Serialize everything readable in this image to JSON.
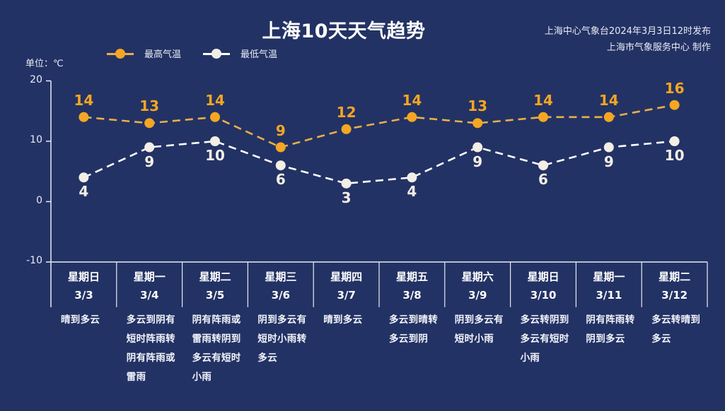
{
  "header": {
    "title": "上海10天天气趋势",
    "publisher_line1": "上海中心气象台2024年3月3日12时发布",
    "publisher_line2": "上海市气象服务中心 制作",
    "unit_label": "单位：℃"
  },
  "legend": {
    "high_label": "最高气温",
    "low_label": "最低气温"
  },
  "colors": {
    "background": "#233264",
    "high": "#f5a623",
    "high_line": "#e8b04a",
    "low": "#f3eee6",
    "axis": "#e8ecf5"
  },
  "axis": {
    "ticks": [
      "20",
      "10",
      "0",
      "-10"
    ]
  },
  "days": [
    {
      "weekday": "星期日",
      "date": "3/3",
      "desc": [
        "晴到多云"
      ]
    },
    {
      "weekday": "星期一",
      "date": "3/4",
      "desc": [
        "多云到阴有",
        "短时阵雨转",
        "阴有阵雨或",
        "雷雨"
      ]
    },
    {
      "weekday": "星期二",
      "date": "3/5",
      "desc": [
        "阴有阵雨或",
        "雷雨转阴到",
        "多云有短时",
        "小雨"
      ]
    },
    {
      "weekday": "星期三",
      "date": "3/6",
      "desc": [
        "阴到多云有",
        "短时小雨转",
        "多云"
      ]
    },
    {
      "weekday": "星期四",
      "date": "3/7",
      "desc": [
        "晴到多云"
      ]
    },
    {
      "weekday": "星期五",
      "date": "3/8",
      "desc": [
        "多云到晴转",
        "多云到阴"
      ]
    },
    {
      "weekday": "星期六",
      "date": "3/9",
      "desc": [
        "阴到多云有",
        "短时小雨"
      ]
    },
    {
      "weekday": "星期日",
      "date": "3/10",
      "desc": [
        "多云转阴到",
        "多云有短时",
        "小雨"
      ]
    },
    {
      "weekday": "星期一",
      "date": "3/11",
      "desc": [
        "阴有阵雨转",
        "阴到多云"
      ]
    },
    {
      "weekday": "星期二",
      "date": "3/12",
      "desc": [
        "多云转晴到",
        "多云"
      ]
    }
  ],
  "chart_data": {
    "type": "line",
    "title": "上海10天天气趋势",
    "subtitle": "上海中心气象台2024年3月3日12时发布 / 上海市气象服务中心 制作",
    "xlabel": "",
    "ylabel": "单位：℃",
    "categories": [
      "3/3",
      "3/4",
      "3/5",
      "3/6",
      "3/7",
      "3/8",
      "3/9",
      "3/10",
      "3/11",
      "3/12"
    ],
    "weekdays": [
      "星期日",
      "星期一",
      "星期二",
      "星期三",
      "星期四",
      "星期五",
      "星期六",
      "星期日",
      "星期一",
      "星期二"
    ],
    "series": [
      {
        "name": "最高气温",
        "values": [
          14,
          13,
          14,
          9,
          12,
          14,
          13,
          14,
          14,
          16
        ],
        "color": "#f5a623",
        "style": "dashed",
        "labels": "above"
      },
      {
        "name": "最低气温",
        "values": [
          4,
          9,
          10,
          6,
          3,
          4,
          9,
          6,
          9,
          10
        ],
        "color": "#f3eee6",
        "style": "dashed",
        "labels": "below"
      }
    ],
    "ylim": [
      -10,
      20
    ],
    "yticks": [
      -10,
      0,
      10,
      20
    ],
    "grid": false,
    "legend_position": "top-left"
  }
}
